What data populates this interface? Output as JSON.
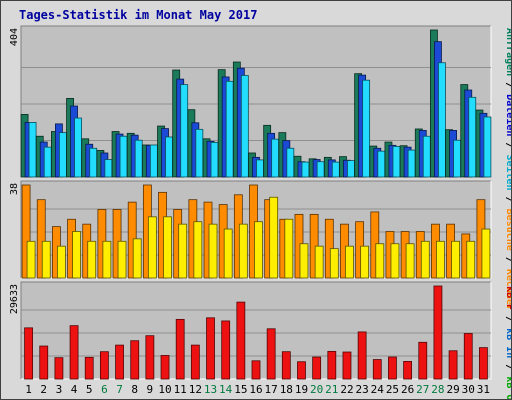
{
  "title": "Tages-Statistik im Monat May 2017",
  "legend_right": {
    "top": [
      {
        "text": "Anfragen",
        "color": "#00805c"
      },
      {
        "text": " / ",
        "color": "#000000"
      },
      {
        "text": "Dateien",
        "color": "#0000cc"
      },
      {
        "text": " / ",
        "color": "#000000"
      },
      {
        "text": "Seiten",
        "color": "#00aacc"
      },
      {
        "text": " / ",
        "color": "#000000"
      },
      {
        "text": "Besuche",
        "color": "#ff8800"
      },
      {
        "text": " / ",
        "color": "#000000"
      },
      {
        "text": "Rechner",
        "color": "#ff8800"
      }
    ],
    "bottom": [
      {
        "text": "kB F",
        "color": "#cc0000"
      },
      {
        "text": " / ",
        "color": "#000000"
      },
      {
        "text": "kB In",
        "color": "#0066cc"
      },
      {
        "text": " / ",
        "color": "#000000"
      },
      {
        "text": "kB Out",
        "color": "#00aa00"
      }
    ]
  },
  "colors": {
    "anfragen": "#1a7a5a",
    "dateien": "#1a4ad6",
    "seiten": "#22ddff",
    "besuche": "#ff8c00",
    "rechner": "#ffee00",
    "kbf": "#ee1111",
    "weekday": "#000000",
    "weekend": "#007a3d"
  },
  "chart_data": {
    "type": "bar",
    "categories": [
      "1",
      "2",
      "3",
      "4",
      "5",
      "6",
      "7",
      "8",
      "9",
      "10",
      "11",
      "12",
      "13",
      "14",
      "15",
      "16",
      "17",
      "18",
      "19",
      "20",
      "21",
      "22",
      "23",
      "24",
      "25",
      "26",
      "27",
      "28",
      "29",
      "30",
      "31"
    ],
    "weekend_days": [
      "6",
      "7",
      "13",
      "14",
      "20",
      "21",
      "27",
      "28"
    ],
    "panels": [
      {
        "id": "top",
        "ymax_label": "404",
        "ymax": 404,
        "series": [
          {
            "key": "anfragen",
            "values": [
              172,
              112,
              125,
              216,
              105,
              73,
              125,
              120,
              88,
              140,
              294,
              185,
              105,
              295,
              316,
              66,
              142,
              122,
              57,
              50,
              54,
              56,
              284,
              85,
              96,
              86,
              132,
              404,
              130,
              254,
              184
            ]
          },
          {
            "key": "dateien",
            "values": [
              150,
              96,
              146,
              195,
              90,
              66,
              118,
              115,
              87,
              133,
              269,
              149,
              98,
              275,
              299,
              54,
              120,
              100,
              42,
              48,
              47,
              46,
              280,
              79,
              87,
              82,
              128,
              372,
              128,
              239,
              175
            ]
          },
          {
            "key": "seiten",
            "values": [
              150,
              82,
              122,
              162,
              79,
              48,
              112,
              101,
              88,
              110,
              254,
              131,
              95,
              263,
              279,
              47,
              104,
              79,
              41,
              42,
              41,
              45,
              266,
              71,
              84,
              74,
              112,
              314,
              101,
              219,
              165
            ]
          }
        ]
      },
      {
        "id": "middle",
        "ymax_label": "38",
        "ymax": 38,
        "series": [
          {
            "key": "besuche",
            "values": [
              38,
              32,
              21,
              24,
              22,
              28,
              28,
              31,
              38,
              35,
              28,
              32,
              31,
              30,
              34,
              38,
              32,
              24,
              26,
              26,
              24,
              22,
              23,
              27,
              19,
              19,
              19,
              22,
              22,
              18,
              32
            ]
          },
          {
            "key": "rechner",
            "values": [
              15,
              15,
              13,
              19,
              15,
              15,
              15,
              16,
              25,
              25,
              22,
              23,
              22,
              20,
              22,
              23,
              33,
              24,
              14,
              13,
              12,
              13,
              13,
              14,
              14,
              14,
              15,
              15,
              15,
              15,
              20
            ]
          }
        ]
      },
      {
        "id": "bottom",
        "ymax_label": "29633",
        "ymax": 29633,
        "series": [
          {
            "key": "kbf",
            "values": [
              16300,
              10500,
              6800,
              17000,
              6900,
              8700,
              10800,
              12200,
              13800,
              7500,
              19000,
              10800,
              19500,
              18500,
              24500,
              5800,
              16000,
              8700,
              5500,
              7000,
              8800,
              8600,
              15000,
              6200,
              7000,
              5600,
              11700,
              29633,
              9000,
              14500,
              10000
            ]
          }
        ]
      }
    ]
  }
}
